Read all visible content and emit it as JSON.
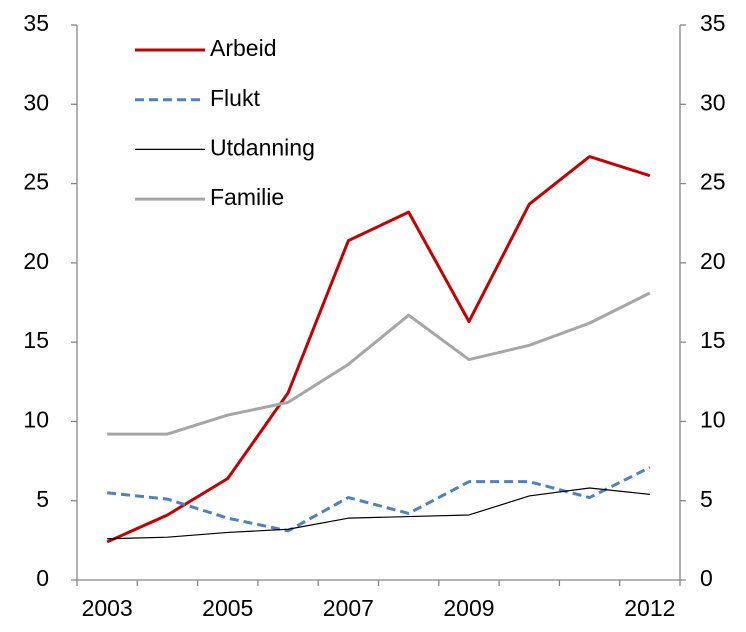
{
  "chart_data": {
    "type": "line",
    "categories": [
      "2003",
      null,
      "2005",
      null,
      "2007",
      null,
      "2009",
      null,
      null,
      "2012"
    ],
    "series": [
      {
        "name": "Arbeid",
        "color": "#c00000",
        "dash": false,
        "width": 3,
        "values": [
          2.4,
          4.1,
          6.4,
          11.8,
          21.4,
          23.2,
          16.3,
          23.7,
          26.7,
          25.5
        ]
      },
      {
        "name": "Flukt",
        "color": "#4f81bd",
        "dash": true,
        "width": 3,
        "values": [
          5.5,
          5.1,
          3.9,
          3.1,
          5.2,
          4.2,
          6.2,
          6.2,
          5.2,
          7.1
        ]
      },
      {
        "name": "Utdanning",
        "color": "#000000",
        "dash": false,
        "width": 1.2,
        "values": [
          2.6,
          2.7,
          3.0,
          3.2,
          3.9,
          4.0,
          4.1,
          5.3,
          5.8,
          5.4
        ]
      },
      {
        "name": "Familie",
        "color": "#a6a6a6",
        "dash": false,
        "width": 3,
        "values": [
          9.2,
          9.2,
          10.4,
          11.2,
          13.6,
          16.7,
          13.9,
          14.8,
          16.2,
          18.1
        ]
      }
    ],
    "ylim": [
      0,
      35
    ],
    "yticks": [
      0,
      5,
      10,
      15,
      20,
      25,
      30,
      35
    ],
    "y2lim": [
      0,
      35
    ],
    "y2ticks": [
      0,
      5,
      10,
      15,
      20,
      25,
      30,
      35
    ],
    "grid": false,
    "legend": "upper left"
  }
}
